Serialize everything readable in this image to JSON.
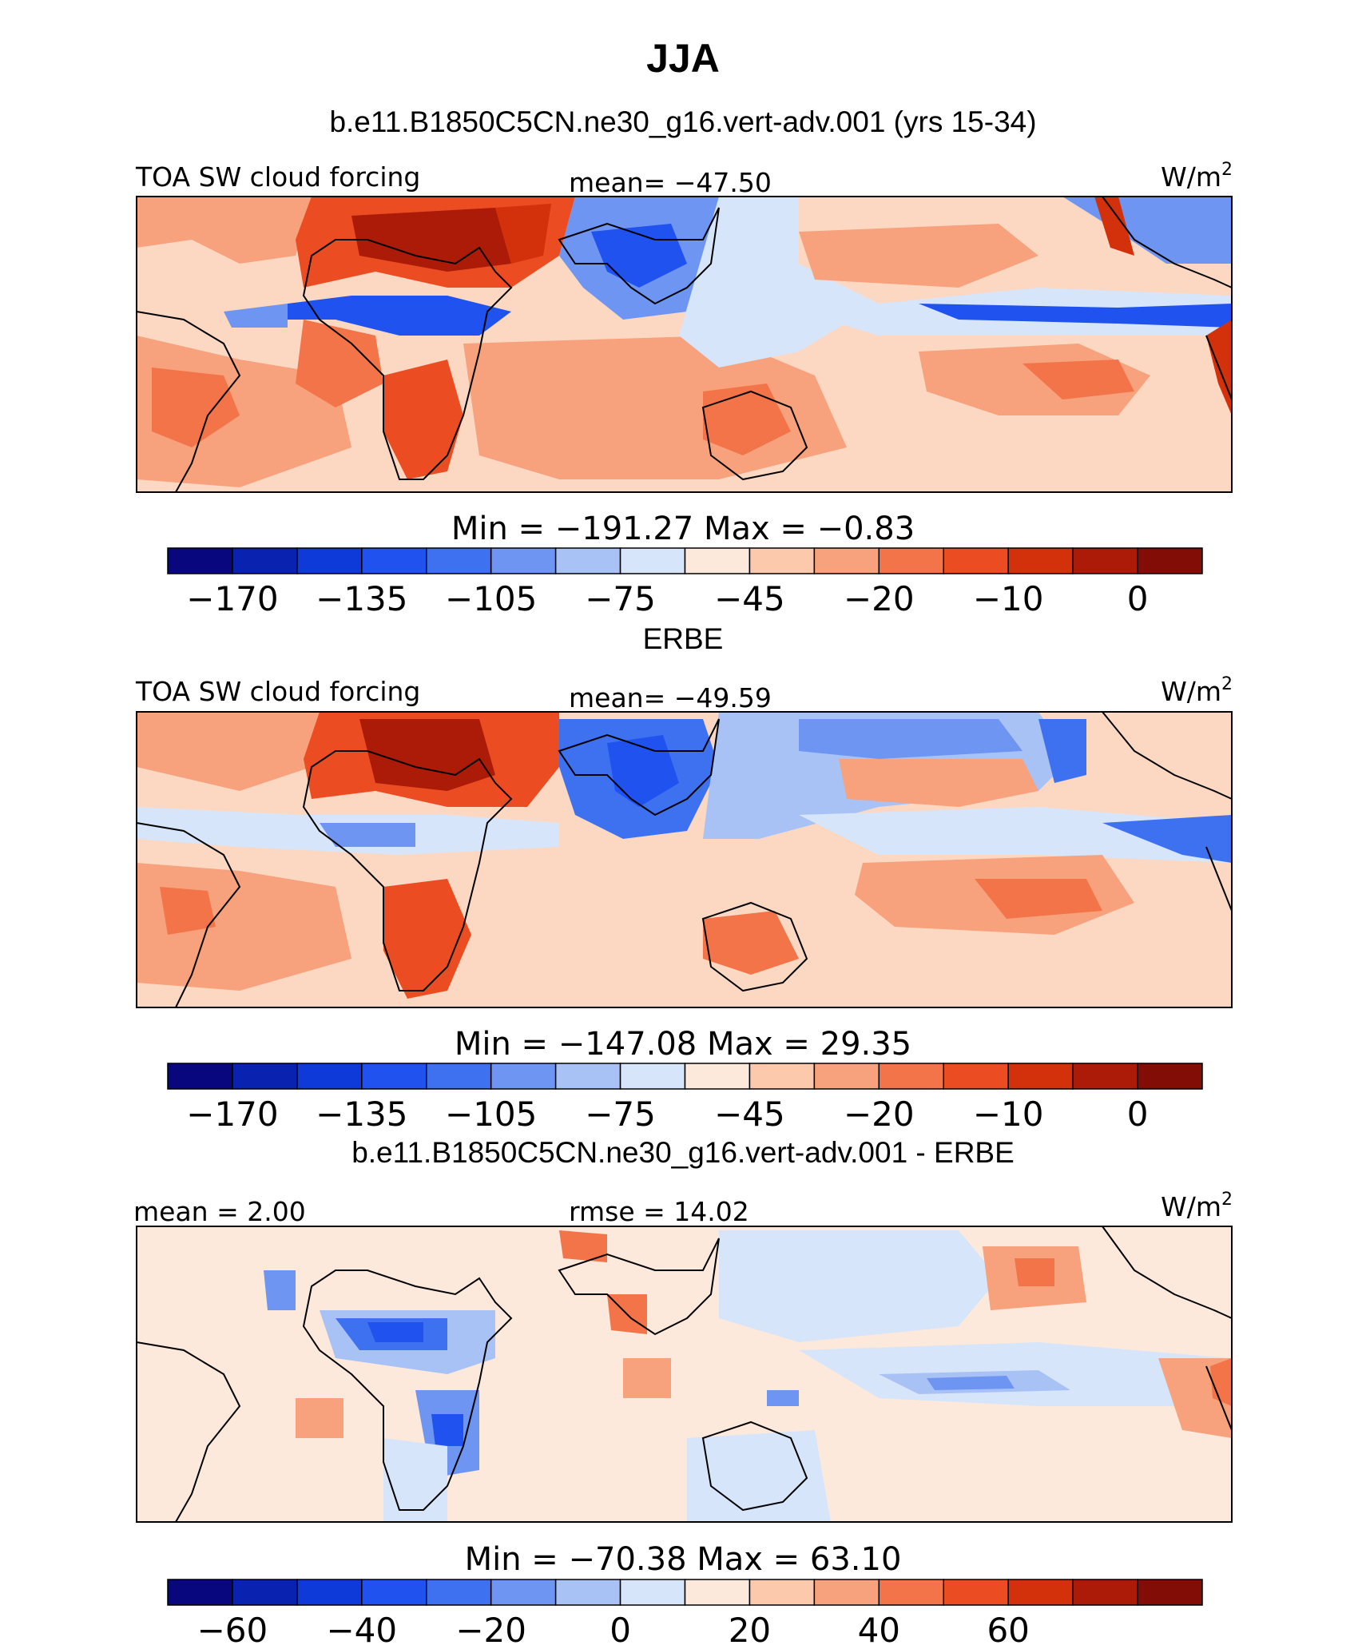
{
  "figure": {
    "title": "JJA"
  },
  "chart_data": [
    {
      "type": "heatmap",
      "title": "b.e11.B1850C5CN.ne30_g16.vert-adv.001 (yrs 15-34)",
      "left_label": "TOA SW cloud forcing",
      "center_label": "mean=  −47.50",
      "units_label": "W/m",
      "units_exp": "2",
      "stats_label": "Min  =  −191.27  Max  =    −0.83",
      "min": -191.27,
      "max": -0.83,
      "mean": -47.5,
      "colorbar": {
        "colors": [
          "#08077e",
          "#0a22b0",
          "#0d3ad8",
          "#1f52ee",
          "#3d71f0",
          "#6d95f1",
          "#a9c2f5",
          "#d6e5fa",
          "#fde9dc",
          "#fcc9ad",
          "#f7a17d",
          "#f37448",
          "#eb4c22",
          "#d3300c",
          "#ab1b08",
          "#820c06"
        ],
        "tick_labels": [
          "−170",
          "−135",
          "−105",
          "−75",
          "−45",
          "−20",
          "−10",
          "0"
        ]
      }
    },
    {
      "type": "heatmap",
      "title": "ERBE",
      "left_label": "TOA SW cloud forcing",
      "center_label": "mean=  −49.59",
      "units_label": "W/m",
      "units_exp": "2",
      "stats_label": "Min  =  −147.08  Max  =    29.35",
      "min": -147.08,
      "max": 29.35,
      "mean": -49.59,
      "colorbar": {
        "colors": [
          "#08077e",
          "#0a22b0",
          "#0d3ad8",
          "#1f52ee",
          "#3d71f0",
          "#6d95f1",
          "#a9c2f5",
          "#d6e5fa",
          "#fde9dc",
          "#fcc9ad",
          "#f7a17d",
          "#f37448",
          "#eb4c22",
          "#d3300c",
          "#ab1b08",
          "#820c06"
        ],
        "tick_labels": [
          "−170",
          "−135",
          "−105",
          "−75",
          "−45",
          "−20",
          "−10",
          "0"
        ]
      }
    },
    {
      "type": "heatmap",
      "title": "b.e11.B1850C5CN.ne30_g16.vert-adv.001 - ERBE",
      "left_label": "mean  =    2.00",
      "center_label": "rmse  =   14.02",
      "units_label": "W/m",
      "units_exp": "2",
      "stats_label": "Min  =  −70.38  Max  =    63.10",
      "min": -70.38,
      "max": 63.1,
      "mean": 2.0,
      "rmse": 14.02,
      "colorbar": {
        "colors": [
          "#08077e",
          "#0a22b0",
          "#0d3ad8",
          "#1f52ee",
          "#3d71f0",
          "#6d95f1",
          "#a9c2f5",
          "#d6e5fa",
          "#fde9dc",
          "#fcc9ad",
          "#f7a17d",
          "#f37448",
          "#eb4c22",
          "#d3300c",
          "#ab1b08",
          "#820c06"
        ],
        "tick_labels": [
          "−60",
          "−40",
          "−20",
          "0",
          "20",
          "40",
          "60"
        ]
      }
    }
  ]
}
